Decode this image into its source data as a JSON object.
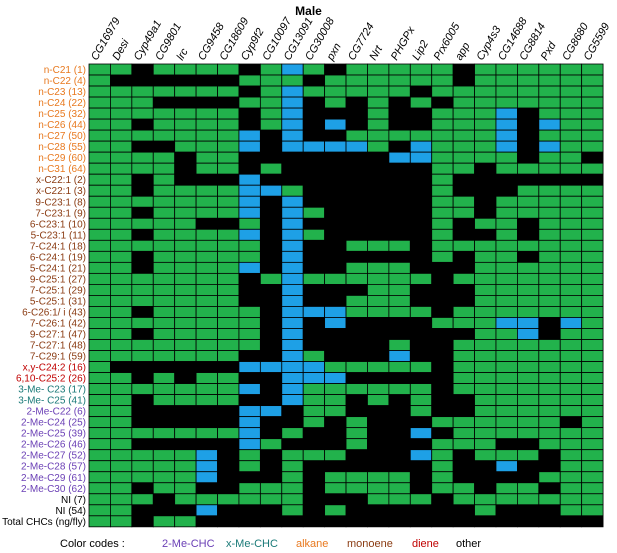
{
  "chart_data": {
    "type": "heatmap",
    "title": "Male",
    "columns": [
      "CG16979",
      "Desi",
      "Cyp49a1",
      "CG9801",
      "lrc",
      "CG9458",
      "CG18609",
      "Cyp9f2",
      "CG10097",
      "CG13091",
      "CG30008",
      "pxn",
      "CG7724",
      "Nrt",
      "PHGPx",
      "Lip2",
      "Prx6005",
      "app",
      "Cyp4s3",
      "CG14688",
      "CG8814",
      "Pxd",
      "CG8680",
      "CG5599"
    ],
    "rows": [
      {
        "label": "n-C21 (1)",
        "class": "alkane",
        "cells": "GGKGGGGKGBGKGGGGGKGGGGGG"
      },
      {
        "label": "n-C22 (4)",
        "class": "alkane",
        "cells": "GKKKKKKGGGKGGGGGGKGGGGGG"
      },
      {
        "label": "n-C23 (13)",
        "class": "alkane",
        "cells": "GGGGGGGKGBGGGGGKGGGGGGGG"
      },
      {
        "label": "n-C24 (22)",
        "class": "alkane",
        "cells": "GGGKKKKGGBKGKGKGKGGGGGGG"
      },
      {
        "label": "n-C25 (32)",
        "class": "alkane",
        "cells": "GGGGGGGKGBKKKGKKGGGBKGGG"
      },
      {
        "label": "n-C26 (44)",
        "class": "alkane",
        "cells": "GGKGGGGKGBKBKGKKGGGBKBGG"
      },
      {
        "label": "n-C27 (50)",
        "class": "alkane",
        "cells": "GGGGGGGBKBKKGGGGGGGBKGGG"
      },
      {
        "label": "n-C28 (55)",
        "class": "alkane",
        "cells": "GGKKGGGBKBBBBGKBGGGBKBGG"
      },
      {
        "label": "n-C29 (60)",
        "class": "alkane",
        "cells": "GGGGKGGKKKKKKKBBGGGGKGGK"
      },
      {
        "label": "n-C31 (64)",
        "class": "alkane",
        "cells": "GGGGKGGKGKKKKKKKGGKGGGGG"
      },
      {
        "label": "x-C22:1 (2)",
        "class": "monoene",
        "cells": "GGKGKKKBKKKKKKKKGKKKKKKK"
      },
      {
        "label": "x-C22:1 (3)",
        "class": "monoene",
        "cells": "GGKGGGGBBGKKKKKKGKKKGGGG"
      },
      {
        "label": "9-C23:1 (8)",
        "class": "monoene",
        "cells": "GGGGGGGBKBKKKKKKGGKGGGGG"
      },
      {
        "label": "7-C23:1 (9)",
        "class": "monoene",
        "cells": "GGKGGGGBKBGKKKKKGGKGGGGG"
      },
      {
        "label": "6-C23:1 (10)",
        "class": "monoene",
        "cells": "GGGGGKKGKBKKKKKKGKGGKGGG"
      },
      {
        "label": "5-C23:1 (11)",
        "class": "monoene",
        "cells": "GGKGGGGBKBGKKKKKGKKGKGGG"
      },
      {
        "label": "7-C24:1 (18)",
        "class": "monoene",
        "cells": "GGGGGGGGKBKKGGGKGGGGGGGG"
      },
      {
        "label": "6-C24:1 (19)",
        "class": "monoene",
        "cells": "GGKGGGGGKBKKKKKKGKGGKGGG"
      },
      {
        "label": "5-C24:1 (21)",
        "class": "monoene",
        "cells": "GGKGGGGBKBKKGGGKKKGGGGGG"
      },
      {
        "label": "9-C25:1 (27)",
        "class": "monoene",
        "cells": "GGGGGGGKGBGGGGGGKGGGGGGG"
      },
      {
        "label": "7-C25:1 (29)",
        "class": "monoene",
        "cells": "GGGGGGGKKBKKKGGKKKGGGGGG"
      },
      {
        "label": "5-C25:1 (31)",
        "class": "monoene",
        "cells": "GGGGGGGKKBKKGGGKKKGGGGGG"
      },
      {
        "label": "6-C26:1/ i (43)",
        "class": "monoene",
        "cells": "GGKGGGGGKBBBGGGGKGGGGGGG"
      },
      {
        "label": "7-C26:1 (42)",
        "class": "monoene",
        "cells": "GGGGGGGGKBKBKKKKGGGBBKBG"
      },
      {
        "label": "9-C27:1 (47)",
        "class": "monoene",
        "cells": "GGKGGGGGKBKKKKKKKKGGBKGG"
      },
      {
        "label": "7-C27:1 (48)",
        "class": "monoene",
        "cells": "GGGGGGGGKBKKKKGKKGGGGGGG"
      },
      {
        "label": "7-C29:1 (59)",
        "class": "monoene",
        "cells": "GGGGGGGKKBGKKKBKKGGGGGGG"
      },
      {
        "label": "x,y-C24:2 (16)",
        "class": "diene",
        "cells": "GKKKKKKBBBBGGGGGKGGGGGGG"
      },
      {
        "label": "6,10-C25:2 (26)",
        "class": "diene",
        "cells": "GGKGKGGKKBBBKKKKKGGGGGGG"
      },
      {
        "label": "3-Me- C23 (17)",
        "class": "x-Me-CHC",
        "cells": "GGGGGGGBKBGGGGGGKGGGGGGG"
      },
      {
        "label": "3-Me- C25 (41)",
        "class": "x-Me-CHC",
        "cells": "GGKGGGGKKBGGKGKGKKGGGGGG"
      },
      {
        "label": "2-Me-C22 (6)",
        "class": "2-Me-CHC",
        "cells": "GGKKKKKBBKGGKKKGKKGGGGGG"
      },
      {
        "label": "2-Me-C24 (25)",
        "class": "2-Me-CHC",
        "cells": "GGKKKKKBKKGKGKKKGGGGGGKG"
      },
      {
        "label": "2-Me-C25 (39)",
        "class": "2-Me-CHC",
        "cells": "GGGGGGGBKGKKGKKBKGGGGGGG"
      },
      {
        "label": "2-Me-C26 (46)",
        "class": "2-Me-CHC",
        "cells": "GGKKKKKBGKKKGKKKGGGKKGGG"
      },
      {
        "label": "2-Me-C27 (52)",
        "class": "2-Me-CHC",
        "cells": "GGGGGBKGKGGGKKKBGKGGGKGG"
      },
      {
        "label": "2-Me-C28 (57)",
        "class": "2-Me-CHC",
        "cells": "GGGGGBKGKGKKKKKKGKKBKKGG"
      },
      {
        "label": "2-Me-C29 (61)",
        "class": "2-Me-CHC",
        "cells": "GGGGGBKKKGKGGGGKGKKKKGGG"
      },
      {
        "label": "2-Me-C30 (62)",
        "class": "2-Me-CHC",
        "cells": "GGKGGKKGGGKGGGGKGGKGGKGG"
      },
      {
        "label": "NI (7)",
        "class": "other",
        "cells": "GGGKGGGGGGKKKGGGKGGGGGGG"
      },
      {
        "label": "NI (54)",
        "class": "other",
        "cells": "GGKKKBKKKGKGKKKKKKGKKKGG"
      },
      {
        "label": "Total CHCs (ng/fly)",
        "class": "other",
        "cells": "GGKGGKKKKKKKKKKKKKKKKKKK"
      }
    ],
    "cell_colors": {
      "G": "#22b24c",
      "B": "#1ea0e6",
      "K": "#000000"
    },
    "legend": {
      "title": "Color codes :",
      "items": [
        {
          "label": "2-Me-CHC",
          "class": "2-Me-CHC",
          "color": "#6a3fb5"
        },
        {
          "label": "x-Me-CHC",
          "class": "x-Me-CHC",
          "color": "#1a7a78"
        },
        {
          "label": "alkane",
          "class": "alkane",
          "color": "#e8791f"
        },
        {
          "label": "monoene",
          "class": "monoene",
          "color": "#8a3b12"
        },
        {
          "label": "diene",
          "class": "diene",
          "color": "#c00000"
        },
        {
          "label": "other",
          "class": "other",
          "color": "#000000"
        }
      ]
    }
  }
}
